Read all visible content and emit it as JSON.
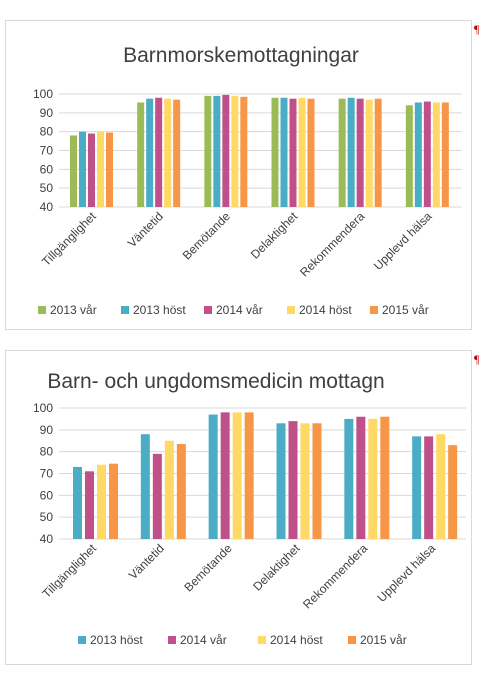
{
  "pilcrow": "¶",
  "chart_data": [
    {
      "type": "bar",
      "title": "Barnmorskemottagningar",
      "categories": [
        "Tillgänglighet",
        "Väntetid",
        "Bemötande",
        "Delaktighet",
        "Rekommendera",
        "Upplevd hälsa"
      ],
      "ylim": [
        40,
        100
      ],
      "yticks": [
        40,
        50,
        60,
        70,
        80,
        90,
        100
      ],
      "grid": true,
      "legend_position": "bottom",
      "series": [
        {
          "name": "2013 vår",
          "color": "#9bbb59",
          "values": [
            78,
            95.5,
            99,
            98,
            97.5,
            94
          ]
        },
        {
          "name": "2013 höst",
          "color": "#4bacc6",
          "values": [
            80,
            97.5,
            99,
            98,
            98,
            95.5
          ]
        },
        {
          "name": "2014 vår",
          "color": "#c0508a",
          "values": [
            79,
            98,
            99.5,
            97.5,
            97.5,
            96
          ]
        },
        {
          "name": "2014 höst",
          "color": "#ffd966",
          "values": [
            80,
            97.5,
            99,
            98,
            97,
            95.5
          ]
        },
        {
          "name": "2015 vår",
          "color": "#f79646",
          "values": [
            79.5,
            97,
            98.5,
            97.5,
            97.5,
            95.5
          ]
        }
      ]
    },
    {
      "type": "bar",
      "title": "Barn- och ungdomsmedicin mottagn",
      "categories": [
        "Tillgänglighet",
        "Väntetid",
        "Bemötande",
        "Delaktighet",
        "Rekommendera",
        "Upplevd hälsa"
      ],
      "ylim": [
        40,
        100
      ],
      "yticks": [
        40,
        50,
        60,
        70,
        80,
        90,
        100
      ],
      "grid": true,
      "legend_position": "bottom",
      "series": [
        {
          "name": "2013 höst",
          "color": "#4bacc6",
          "values": [
            73,
            88,
            97,
            93,
            95,
            87
          ]
        },
        {
          "name": "2014 vår",
          "color": "#c0508a",
          "values": [
            71,
            79,
            98,
            94,
            96,
            87
          ]
        },
        {
          "name": "2014 höst",
          "color": "#ffd966",
          "values": [
            74,
            85,
            98,
            93,
            95,
            88
          ]
        },
        {
          "name": "2015 vår",
          "color": "#f79646",
          "values": [
            74.5,
            83.5,
            98,
            93,
            96,
            83
          ]
        }
      ]
    }
  ]
}
